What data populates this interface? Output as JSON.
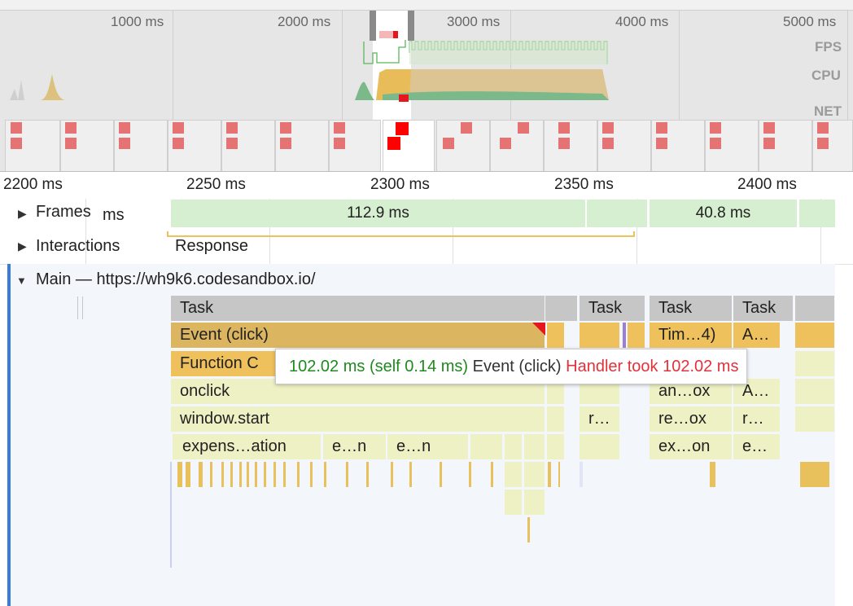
{
  "overview": {
    "ticks": [
      "1000 ms",
      "2000 ms",
      "3000 ms",
      "4000 ms",
      "5000 ms"
    ],
    "labels": {
      "fps": "FPS",
      "cpu": "CPU",
      "net": "NET"
    }
  },
  "ruler": {
    "ticks": [
      "2200 ms",
      "2250 ms",
      "2300 ms",
      "2350 ms",
      "2400 ms"
    ]
  },
  "tracks": {
    "frames": {
      "label": "Frames",
      "partial": "ms",
      "blocks": [
        "112.9 ms",
        "40.8 ms"
      ]
    },
    "interactions": {
      "label": "Interactions",
      "response": "Response"
    },
    "main": {
      "label": "Main — https://wh9k6.codesandbox.io/"
    }
  },
  "flame": {
    "task": "Task",
    "event_click": "Event (click)",
    "function_call": "Function C",
    "onclick": "onclick",
    "window_start": "window.start",
    "expensive": "expens…ation",
    "en": "e…n",
    "r": "r…",
    "timer": "Tim…4)",
    "a": "A…",
    "anox": "an…ox",
    "reox": "re…ox",
    "exon": "ex…on",
    "e": "e…"
  },
  "tooltip": {
    "duration": "102.02 ms (self 0.14 ms)",
    "name": "Event (click)",
    "warning": "Handler took 102.02 ms",
    "colors": {
      "duration": "#1e8a1e",
      "warning": "#e0323a"
    }
  }
}
